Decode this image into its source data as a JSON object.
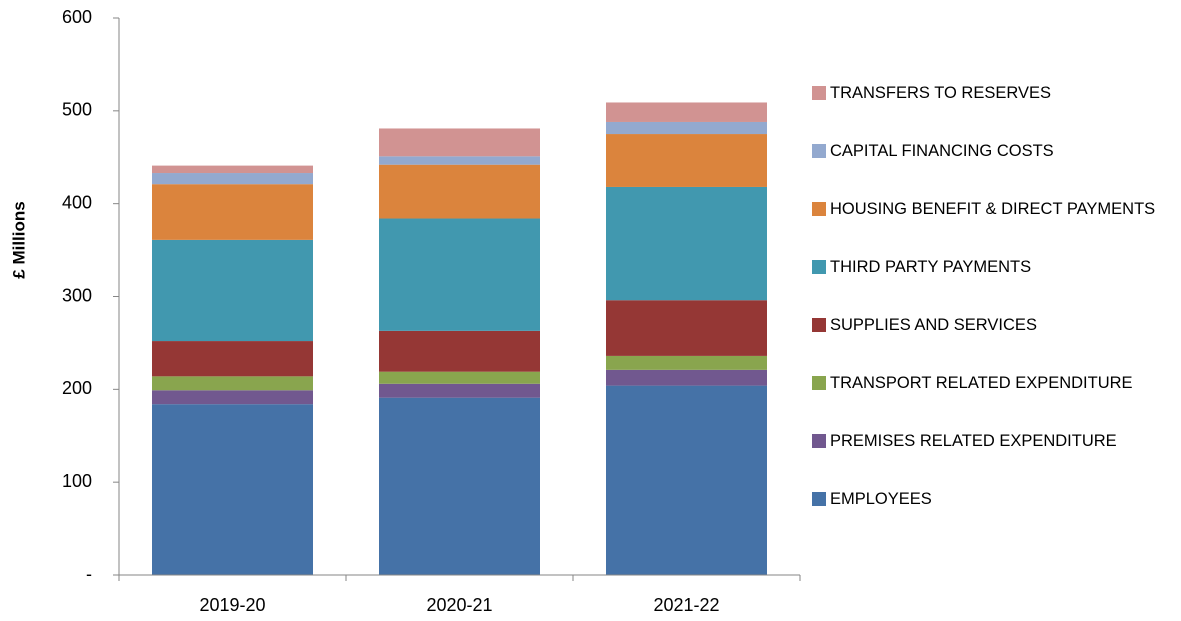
{
  "chart_data": {
    "type": "stacked_bar",
    "ylabel": "£ Millions",
    "categories": [
      "2019-20",
      "2020-21",
      "2021-22"
    ],
    "series": [
      {
        "name": "EMPLOYEES",
        "color": "#4572a7",
        "values": [
          184,
          191,
          204
        ]
      },
      {
        "name": "PREMISES RELATED EXPENDITURE",
        "color": "#71588f",
        "values": [
          15,
          15,
          17
        ]
      },
      {
        "name": "TRANSPORT RELATED EXPENDITURE",
        "color": "#89a54e",
        "values": [
          15,
          13,
          15
        ]
      },
      {
        "name": "SUPPLIES AND SERVICES",
        "color": "#953735",
        "values": [
          38,
          44,
          60
        ]
      },
      {
        "name": "THIRD PARTY PAYMENTS",
        "color": "#4198af",
        "values": [
          109,
          121,
          122
        ]
      },
      {
        "name": "HOUSING BENEFIT & DIRECT PAYMENTS",
        "color": "#db843d",
        "values": [
          60,
          58,
          57
        ]
      },
      {
        "name": "CAPITAL FINANCING COSTS",
        "color": "#93a9cf",
        "values": [
          12,
          9,
          13
        ]
      },
      {
        "name": "TRANSFERS TO RESERVES",
        "color": "#d19392",
        "values": [
          8,
          30,
          21
        ]
      }
    ],
    "ylim": [
      0,
      600
    ],
    "yticks": [
      {
        "value": 0,
        "label": "-"
      },
      100,
      200,
      300,
      400,
      500,
      600
    ],
    "legend": "right"
  }
}
